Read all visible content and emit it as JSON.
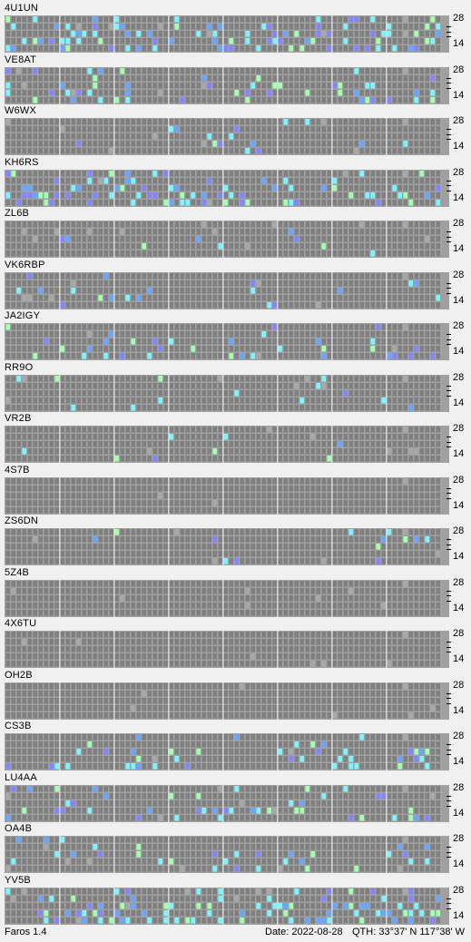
{
  "band_labels": {
    "top": "28",
    "bottom": "14"
  },
  "colors": {
    "background_cell": "#808080",
    "weak_cell": "#a8a8a8",
    "blue_cell": "#6aa6ff",
    "cyan_cell": "#7ff4ff",
    "green_cell": "#a4ffb0",
    "violet_cell": "#8484ff",
    "grid_line": "#a0a0a0",
    "hour_line": "#e8e8e8"
  },
  "beacons": [
    {
      "callsign": "4U1UN",
      "activity": "high"
    },
    {
      "callsign": "VE8AT",
      "activity": "medium"
    },
    {
      "callsign": "W6WX",
      "activity": "low"
    },
    {
      "callsign": "KH6RS",
      "activity": "high"
    },
    {
      "callsign": "ZL6B",
      "activity": "low"
    },
    {
      "callsign": "VK6RBP",
      "activity": "low"
    },
    {
      "callsign": "JA2IGY",
      "activity": "medium"
    },
    {
      "callsign": "RR9O",
      "activity": "low"
    },
    {
      "callsign": "VR2B",
      "activity": "low"
    },
    {
      "callsign": "4S7B",
      "activity": "none"
    },
    {
      "callsign": "ZS6DN",
      "activity": "low"
    },
    {
      "callsign": "5Z4B",
      "activity": "none"
    },
    {
      "callsign": "4X6TU",
      "activity": "none"
    },
    {
      "callsign": "OH2B",
      "activity": "none"
    },
    {
      "callsign": "CS3B",
      "activity": "medium"
    },
    {
      "callsign": "LU4AA",
      "activity": "medium"
    },
    {
      "callsign": "OA4B",
      "activity": "medium"
    },
    {
      "callsign": "YV5B",
      "activity": "high"
    }
  ],
  "footer": {
    "app": "Faros 1.4",
    "date": "Date: 2022-08-28",
    "qth": "QTH:  33°37' N   117°38' W"
  }
}
